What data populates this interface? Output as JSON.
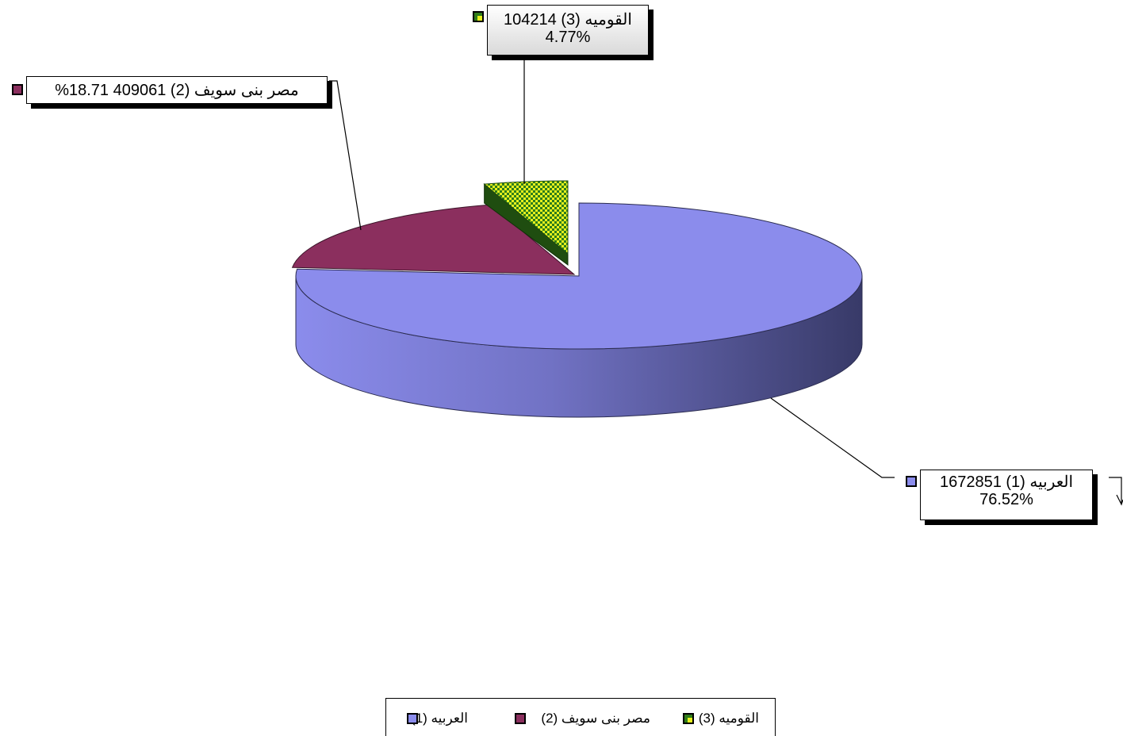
{
  "chart_data": {
    "type": "pie",
    "style": "3d-exploded",
    "total_label": "",
    "slices": [
      {
        "label": "العربيه (1)",
        "value": 1672851,
        "percent_label": "76.52%",
        "color": "#8b8cec",
        "pattern": "solid"
      },
      {
        "label": "مصر بنى سويف (2)",
        "value": 409061,
        "percent_label": "18.71%",
        "color": "#8b2f5e",
        "pattern": "solid"
      },
      {
        "label": "القوميه (3)",
        "value": 104214,
        "percent_label": "4.77%",
        "color": "#e6f01e",
        "pattern": "checker-green"
      }
    ],
    "callouts": {
      "s1_line1": "العربيه (1) 1672851",
      "s1_line2": "76.52%",
      "s2_line1": "مصر بنى سويف (2)  409061 18.71%",
      "s3_line1": "القوميه (3) 104214",
      "s3_line2": "4.77%"
    },
    "legend": {
      "position": "bottom",
      "items": [
        "العربيه (1)",
        "مصر بنى سويف (2)",
        "القوميه (3)"
      ]
    }
  }
}
